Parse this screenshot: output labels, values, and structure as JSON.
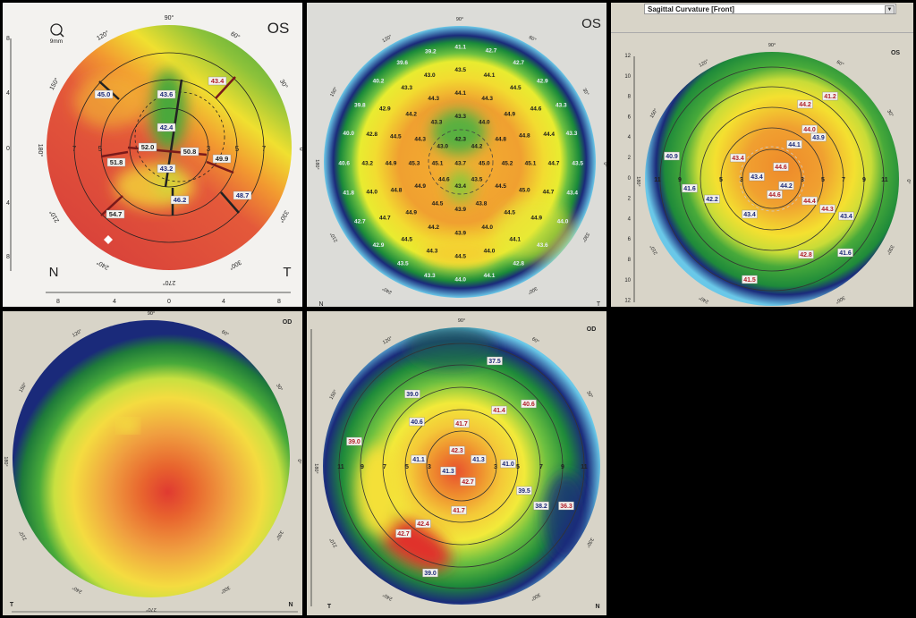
{
  "colors": {
    "red_label": "#b0202a",
    "blue_label": "#1c2a78",
    "frame": "#000000"
  },
  "panels": [
    {
      "eye": "OS",
      "scale": "9mm",
      "magnifier_icon": "magnifier-icon",
      "left_marker": "N",
      "right_marker": "T",
      "degrees": [
        "90°",
        "120°",
        "60°",
        "150°",
        "30°",
        "180°",
        "0°",
        "210°",
        "330°",
        "240°",
        "300°",
        "270°"
      ],
      "y_ticks": [
        "8",
        "4",
        "0",
        "4",
        "8"
      ],
      "x_ticks": [
        "8",
        "4",
        "0",
        "4",
        "8"
      ],
      "ring_labels": [
        "7",
        "5",
        "3",
        "5",
        "7"
      ],
      "values": [
        {
          "v": "43.6",
          "c": "#1c2a78"
        },
        {
          "v": "42.4",
          "c": "#1c2a78"
        },
        {
          "v": "52.0",
          "c": "#222222"
        },
        {
          "v": "50.8",
          "c": "#222222"
        },
        {
          "v": "43.2",
          "c": "#1c2a78"
        },
        {
          "v": "46.2",
          "c": "#1c2a78"
        },
        {
          "v": "45.0",
          "c": "#1c2a78"
        },
        {
          "v": "43.4",
          "c": "#b0202a"
        },
        {
          "v": "51.8",
          "c": "#222222"
        },
        {
          "v": "49.9",
          "c": "#222222"
        },
        {
          "v": "48.7",
          "c": "#1c2a78"
        },
        {
          "v": "54.7",
          "c": "#222222"
        }
      ]
    },
    {
      "eye": "OS",
      "left_marker": "N",
      "right_marker": "T",
      "degrees": [
        "90°",
        "120°",
        "60°",
        "150°",
        "30°",
        "180°",
        "0°",
        "210°",
        "330°",
        "240°",
        "300°",
        "270°"
      ],
      "values": [
        "39.2",
        "41.1",
        "42.7",
        "39.6",
        "43.5",
        "42.7",
        "43.0",
        "44.1",
        "40.2",
        "43.3",
        "44.5",
        "42.9",
        "44.1",
        "44.3",
        "44.3",
        "39.8",
        "42.9",
        "44.2",
        "44.9",
        "44.6",
        "43.3",
        "43.3",
        "43.3",
        "44.0",
        "40.0",
        "42.8",
        "44.5",
        "44.3",
        "42.3",
        "43.0",
        "44.2",
        "44.8",
        "44.8",
        "44.4",
        "43.3",
        "40.6",
        "43.2",
        "44.9",
        "45.3",
        "45.1",
        "43.7",
        "45.0",
        "45.2",
        "45.1",
        "44.7",
        "43.5",
        "44.6",
        "43.5",
        "43.4",
        "41.8",
        "44.0",
        "44.8",
        "44.9",
        "44.5",
        "45.0",
        "44.7",
        "43.4",
        "44.5",
        "43.9",
        "43.8",
        "42.7",
        "44.7",
        "44.9",
        "44.5",
        "44.9",
        "44.0",
        "44.2",
        "43.9",
        "44.0",
        "44.5",
        "44.1",
        "42.9",
        "43.6",
        "44.3",
        "44.5",
        "44.0",
        "43.5",
        "42.8",
        "43.3",
        "44.0",
        "44.1"
      ]
    },
    {
      "eye": "OS",
      "map_type": "Sagittal Curvature [Front]",
      "degrees": [
        "90°",
        "120°",
        "60°",
        "150°",
        "30°",
        "180°",
        "0°",
        "210°",
        "330°",
        "240°",
        "300°",
        "270°"
      ],
      "y_ticks": [
        "12",
        "10",
        "8",
        "6",
        "4",
        "2",
        "0",
        "2",
        "4",
        "6",
        "8",
        "10",
        "12"
      ],
      "ring_labels": [
        "11",
        "9",
        "5",
        "3",
        "3",
        "5",
        "7",
        "9",
        "11"
      ],
      "values": [
        {
          "v": "41.2",
          "c": "#b0202a"
        },
        {
          "v": "44.2",
          "c": "#b0202a"
        },
        {
          "v": "44.0",
          "c": "#b0202a"
        },
        {
          "v": "43.9",
          "c": "#1c2a78"
        },
        {
          "v": "44.1",
          "c": "#1c2a78"
        },
        {
          "v": "43.4",
          "c": "#b0202a"
        },
        {
          "v": "44.6",
          "c": "#b0202a"
        },
        {
          "v": "40.9",
          "c": "#1c2a78"
        },
        {
          "v": "41.6",
          "c": "#1c2a78"
        },
        {
          "v": "43.4",
          "c": "#1c2a78"
        },
        {
          "v": "44.2",
          "c": "#1c2a78"
        },
        {
          "v": "42.2",
          "c": "#1c2a78"
        },
        {
          "v": "44.6",
          "c": "#b0202a"
        },
        {
          "v": "44.4",
          "c": "#b0202a"
        },
        {
          "v": "44.3",
          "c": "#b0202a"
        },
        {
          "v": "43.4",
          "c": "#1c2a78"
        },
        {
          "v": "43.4",
          "c": "#1c2a78"
        },
        {
          "v": "42.8",
          "c": "#b0202a"
        },
        {
          "v": "41.6",
          "c": "#1c2a78"
        },
        {
          "v": "41.5",
          "c": "#b0202a"
        }
      ]
    },
    {
      "eye": "OD",
      "left_marker": "T",
      "right_marker": "N",
      "degrees": [
        "90°",
        "120°",
        "60°",
        "150°",
        "30°",
        "180°",
        "0°",
        "210°",
        "330°",
        "240°",
        "300°",
        "270°"
      ]
    },
    {
      "eye": "OD",
      "left_marker": "T",
      "right_marker": "N",
      "degrees": [
        "90°",
        "120°",
        "60°",
        "150°",
        "30°",
        "180°",
        "0°",
        "210°",
        "330°",
        "240°",
        "300°",
        "270°"
      ],
      "ring_labels": [
        "11",
        "9",
        "7",
        "5",
        "3",
        "3",
        "5",
        "7",
        "9",
        "11"
      ],
      "values": [
        {
          "v": "37.5",
          "c": "#1c2a78"
        },
        {
          "v": "39.0",
          "c": "#1c2a78"
        },
        {
          "v": "40.6",
          "c": "#b0202a"
        },
        {
          "v": "41.4",
          "c": "#b0202a"
        },
        {
          "v": "40.6",
          "c": "#1c2a78"
        },
        {
          "v": "41.7",
          "c": "#b0202a"
        },
        {
          "v": "39.0",
          "c": "#b0202a"
        },
        {
          "v": "42.3",
          "c": "#b0202a"
        },
        {
          "v": "41.1",
          "c": "#1c2a78"
        },
        {
          "v": "41.3",
          "c": "#1c2a78"
        },
        {
          "v": "41.3",
          "c": "#1c2a78"
        },
        {
          "v": "41.0",
          "c": "#1c2a78"
        },
        {
          "v": "42.7",
          "c": "#b0202a"
        },
        {
          "v": "39.5",
          "c": "#1c2a78"
        },
        {
          "v": "38.2",
          "c": "#1c2a78"
        },
        {
          "v": "36.3",
          "c": "#b0202a"
        },
        {
          "v": "41.7",
          "c": "#b0202a"
        },
        {
          "v": "42.4",
          "c": "#b0202a"
        },
        {
          "v": "42.7",
          "c": "#b0202a"
        },
        {
          "v": "39.0",
          "c": "#1c2a78"
        }
      ]
    }
  ]
}
